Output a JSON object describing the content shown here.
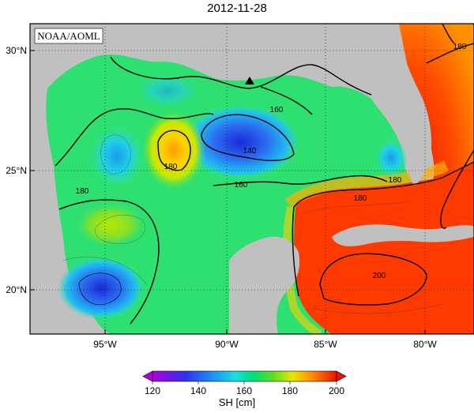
{
  "title": "2012-11-28",
  "source_label": "NOAA/AOML",
  "axes": {
    "lat_ticks": [
      "30°N",
      "25°N",
      "20°N"
    ],
    "lon_ticks": [
      "95°W",
      "90°W",
      "85°W",
      "80°W"
    ]
  },
  "contour_labels": [
    "140",
    "160",
    "160",
    "180",
    "180",
    "180",
    "200",
    "180",
    "180"
  ],
  "colorbar": {
    "label": "SH [cm]",
    "ticks": [
      "120",
      "140",
      "160",
      "180",
      "200"
    ],
    "colors": [
      "#b000e0",
      "#2a2ae6",
      "#14c8ff",
      "#00e07a",
      "#d8e800",
      "#ff8a00",
      "#ee1a00"
    ]
  },
  "colors": {
    "land": "#c0c0c0",
    "frame": "#000000",
    "grid": "#000000"
  },
  "markers": [
    {
      "type": "triangle",
      "name": "buoy-marker"
    }
  ]
}
